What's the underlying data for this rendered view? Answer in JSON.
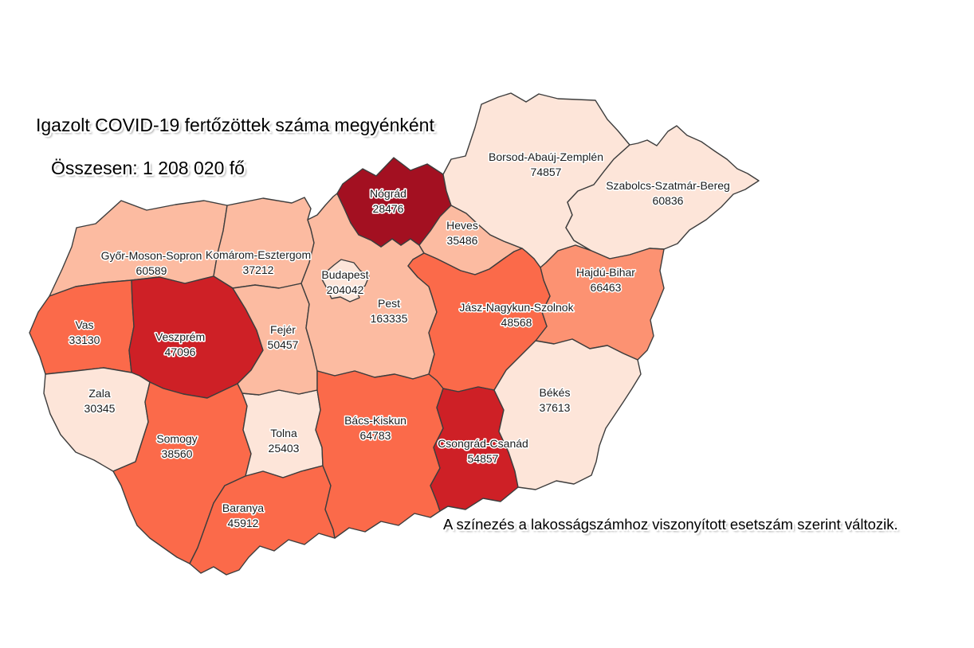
{
  "header": {
    "title": "Igazolt COVID-19 fertőzöttek száma megyénként",
    "subtitle": "Összesen: 1 208 020 fő"
  },
  "footnote": "A színezés a lakosságszámhoz viszonyított esetszám szerint változik.",
  "chart_data": {
    "type": "choropleth-map",
    "region": "Hungary counties",
    "title": "Igazolt COVID-19 fertőzöttek száma megyénként",
    "total_label": "Összesen: 1 208 020 fő",
    "total": 1208020,
    "unit": "fő",
    "note": "A színezés a lakosságszámhoz viszonyított esetszám szerint változik.",
    "legend": "darker red = more cases relative to population",
    "border_color": "#3d3d3d",
    "palette": {
      "1": "#FDE5D9",
      "2": "#FCBBA1",
      "3": "#FC9272",
      "4": "#FB6A4A",
      "5": "#CE2026",
      "6": "#A31021"
    },
    "counties": [
      {
        "id": "gyor-moson-sopron",
        "name": "Győr-Moson-Sopron",
        "value": 60589,
        "tier": 2
      },
      {
        "id": "komarom-esztergom",
        "name": "Komárom-Esztergom",
        "value": 37212,
        "tier": 2
      },
      {
        "id": "vas",
        "name": "Vas",
        "value": 33130,
        "tier": 4
      },
      {
        "id": "veszprem",
        "name": "Veszprém",
        "value": 47096,
        "tier": 5
      },
      {
        "id": "zala",
        "name": "Zala",
        "value": 30345,
        "tier": 1
      },
      {
        "id": "somogy",
        "name": "Somogy",
        "value": 38560,
        "tier": 4
      },
      {
        "id": "tolna",
        "name": "Tolna",
        "value": 25403,
        "tier": 1
      },
      {
        "id": "baranya",
        "name": "Baranya",
        "value": 45912,
        "tier": 4
      },
      {
        "id": "fejer",
        "name": "Fejér",
        "value": 50457,
        "tier": 2
      },
      {
        "id": "pest",
        "name": "Pest",
        "value": 163335,
        "tier": 2
      },
      {
        "id": "budapest",
        "name": "Budapest",
        "value": 204042,
        "tier": 1
      },
      {
        "id": "nograd",
        "name": "Nógrád",
        "value": 28476,
        "tier": 6
      },
      {
        "id": "heves",
        "name": "Heves",
        "value": 35486,
        "tier": 2
      },
      {
        "id": "borsod-abauj-zemplen",
        "name": "Borsod-Abaúj-Zemplén",
        "value": 74857,
        "tier": 1
      },
      {
        "id": "szabolcs-szatmar-bereg",
        "name": "Szabolcs-Szatmár-Bereg",
        "value": 60836,
        "tier": 1
      },
      {
        "id": "hajdu-bihar",
        "name": "Hajdú-Bihar",
        "value": 66463,
        "tier": 3
      },
      {
        "id": "jasz-nagykun-szolnok",
        "name": "Jász-Nagykun-Szolnok",
        "value": 48568,
        "tier": 4
      },
      {
        "id": "bacs-kiskun",
        "name": "Bács-Kiskun",
        "value": 64783,
        "tier": 4
      },
      {
        "id": "csongrad-csanad",
        "name": "Csongrád-Csanád",
        "value": 54857,
        "tier": 5
      },
      {
        "id": "bekes",
        "name": "Békés",
        "value": 37613,
        "tier": 1
      }
    ]
  }
}
